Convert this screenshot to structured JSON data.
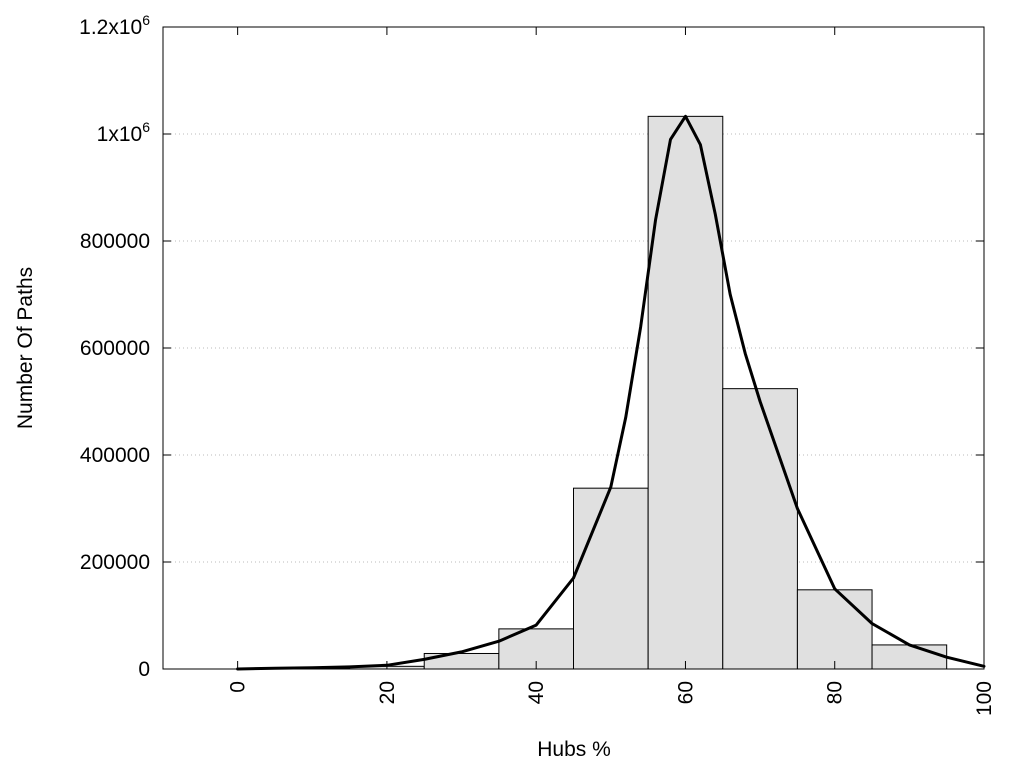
{
  "chart_data": {
    "type": "bar",
    "xlabel": "Hubs %",
    "ylabel": "Number Of Paths",
    "xlim": [
      -10,
      100
    ],
    "ylim": [
      0,
      1200000
    ],
    "grid": true,
    "x_ticks": [
      0,
      20,
      40,
      60,
      80,
      100
    ],
    "x_tick_labels": [
      "0",
      "20",
      "40",
      "60",
      "80",
      "100"
    ],
    "y_ticks": [
      {
        "value": 0,
        "base": "0",
        "exp": ""
      },
      {
        "value": 200000,
        "base": "200000",
        "exp": ""
      },
      {
        "value": 400000,
        "base": "400000",
        "exp": ""
      },
      {
        "value": 600000,
        "base": "600000",
        "exp": ""
      },
      {
        "value": 800000,
        "base": "800000",
        "exp": ""
      },
      {
        "value": 1000000,
        "base": "1x10",
        "exp": "6"
      },
      {
        "value": 1200000,
        "base": "1.2x10",
        "exp": "6"
      }
    ],
    "bin_width": 10,
    "bars": [
      {
        "x": 0,
        "y": 0
      },
      {
        "x": 10,
        "y": 1500
      },
      {
        "x": 20,
        "y": 5000
      },
      {
        "x": 30,
        "y": 29000
      },
      {
        "x": 40,
        "y": 75000
      },
      {
        "x": 50,
        "y": 338000
      },
      {
        "x": 60,
        "y": 1033000
      },
      {
        "x": 70,
        "y": 524000
      },
      {
        "x": 80,
        "y": 148000
      },
      {
        "x": 90,
        "y": 45000
      }
    ],
    "curve": {
      "x": [
        0,
        5,
        10,
        15,
        20,
        25,
        30,
        35,
        40,
        45,
        50,
        52,
        54,
        56,
        58,
        60,
        62,
        64,
        66,
        68,
        70,
        75,
        80,
        85,
        90,
        95,
        100
      ],
      "y": [
        0,
        1500,
        2500,
        4000,
        7000,
        18000,
        32000,
        52000,
        82000,
        170000,
        340000,
        470000,
        640000,
        840000,
        990000,
        1033000,
        980000,
        850000,
        700000,
        590000,
        500000,
        300000,
        150000,
        85000,
        45000,
        22000,
        5000
      ]
    }
  }
}
